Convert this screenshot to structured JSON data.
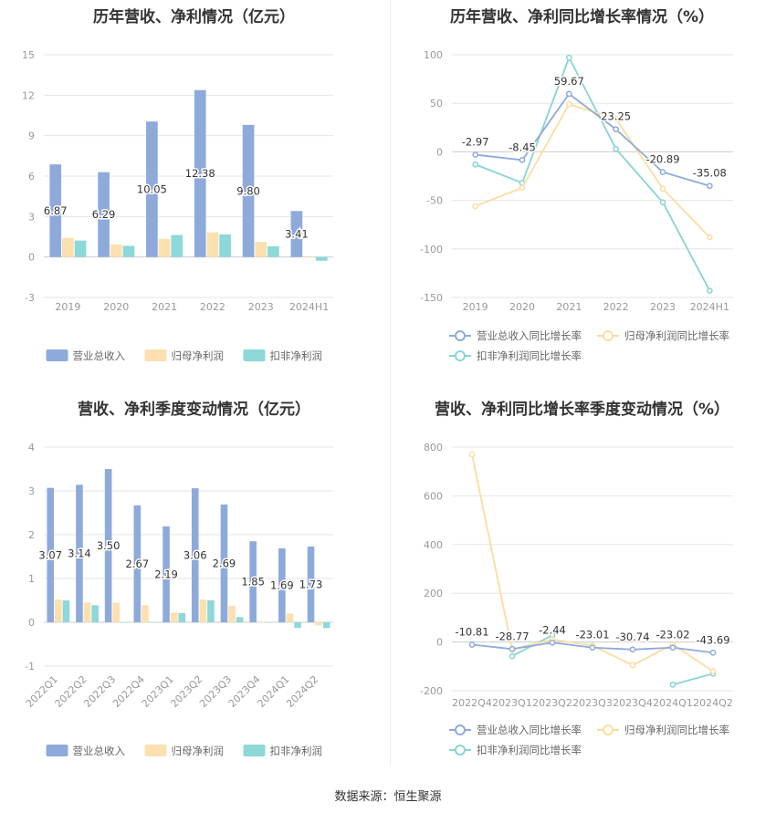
{
  "source_text": "数据来源：恒生聚源",
  "chart_data": [
    {
      "type": "bar",
      "title": "历年营收、净利情况（亿元）",
      "categories": [
        "2019",
        "2020",
        "2021",
        "2022",
        "2023",
        "2024H1"
      ],
      "series": [
        {
          "name": "营业总收入",
          "color": "#8eaadb",
          "values": [
            6.87,
            6.29,
            10.05,
            12.38,
            9.8,
            3.41
          ],
          "labels": [
            "6.87",
            "6.29",
            "10.05",
            "12.38",
            "9.80",
            "3.41"
          ]
        },
        {
          "name": "归母净利润",
          "color": "#fde0b0",
          "values": [
            1.42,
            0.93,
            1.35,
            1.82,
            1.12,
            0.0
          ]
        },
        {
          "name": "扣非净利润",
          "color": "#8dd8d8",
          "values": [
            1.22,
            0.83,
            1.63,
            1.68,
            0.8,
            -0.28
          ]
        }
      ],
      "ylim": [
        -3,
        15
      ],
      "yticks": [
        -3,
        0,
        3,
        6,
        9,
        12,
        15
      ],
      "grid": true,
      "legend": "bottom"
    },
    {
      "type": "line",
      "title": "历年营收、净利同比增长率情况（%）",
      "categories": [
        "2019",
        "2020",
        "2021",
        "2022",
        "2023",
        "2024H1"
      ],
      "series": [
        {
          "name": "营业总收入同比增长率",
          "color": "#8eaadb",
          "values": [
            -2.97,
            -8.45,
            59.67,
            23.25,
            -20.89,
            -35.08
          ],
          "labels": [
            "-2.97",
            "-8.45",
            "59.67",
            "23.25",
            "-20.89",
            "-35.08"
          ]
        },
        {
          "name": "归母净利润同比增长率",
          "color": "#fddca0",
          "values": [
            -56,
            -37,
            49,
            34,
            -38,
            -88
          ]
        },
        {
          "name": "扣非净利润同比增长率",
          "color": "#88d4d6",
          "values": [
            -13,
            -32,
            97,
            3,
            -52,
            -143
          ]
        }
      ],
      "ylim": [
        -150,
        100
      ],
      "yticks": [
        -150,
        -100,
        -50,
        0,
        50,
        100
      ],
      "grid": true,
      "legend": "bottom"
    },
    {
      "type": "bar",
      "title": "营收、净利季度变动情况（亿元）",
      "categories": [
        "2022Q1",
        "2022Q2",
        "2022Q3",
        "2022Q4",
        "2023Q1",
        "2023Q2",
        "2023Q3",
        "2023Q4",
        "2024Q1",
        "2024Q2"
      ],
      "series": [
        {
          "name": "营业总收入",
          "color": "#8eaadb",
          "values": [
            3.07,
            3.14,
            3.5,
            2.67,
            2.19,
            3.06,
            2.69,
            1.85,
            1.69,
            1.73
          ],
          "labels": [
            "3.07",
            "3.14",
            "3.50",
            "2.67",
            "2.19",
            "3.06",
            "2.69",
            "1.85",
            "1.69",
            "1.73"
          ]
        },
        {
          "name": "归母净利润",
          "color": "#fde0b0",
          "values": [
            0.52,
            0.45,
            0.45,
            0.39,
            0.22,
            0.52,
            0.38,
            0.0,
            0.2,
            -0.07
          ]
        },
        {
          "name": "扣非净利润",
          "color": "#8dd8d8",
          "values": [
            0.5,
            0.39,
            0.0,
            0.0,
            0.21,
            0.5,
            0.12,
            0.0,
            -0.13,
            -0.13
          ]
        }
      ],
      "ylim": [
        -1,
        4
      ],
      "yticks": [
        -1,
        0,
        1,
        2,
        3,
        4
      ],
      "grid": true,
      "legend": "bottom"
    },
    {
      "type": "line",
      "title": "营收、净利同比增长率季度变动情况（%）",
      "categories": [
        "2022Q4",
        "2023Q1",
        "2023Q2",
        "2023Q3",
        "2023Q4",
        "2024Q1",
        "2024Q2"
      ],
      "series": [
        {
          "name": "营业总收入同比增长率",
          "color": "#8eaadb",
          "values": [
            -10.81,
            -28.77,
            -2.44,
            -23.01,
            -30.74,
            -23.02,
            -43.69
          ],
          "labels": [
            "-10.81",
            "-28.77",
            "-2.44",
            "-23.01",
            "-30.74",
            "-23.02",
            "-43.69"
          ]
        },
        {
          "name": "归母净利润同比增长率",
          "color": "#fddca0",
          "values": [
            770,
            -30,
            10,
            -15,
            -95,
            -10,
            -120
          ]
        },
        {
          "name": "扣非净利润同比增长率",
          "color": "#88d4d6",
          "values": [
            null,
            -58,
            28,
            null,
            null,
            -175,
            -130
          ]
        }
      ],
      "ylim": [
        -200,
        800
      ],
      "yticks": [
        -200,
        0,
        200,
        400,
        600,
        800
      ],
      "grid": true,
      "legend": "bottom"
    }
  ]
}
